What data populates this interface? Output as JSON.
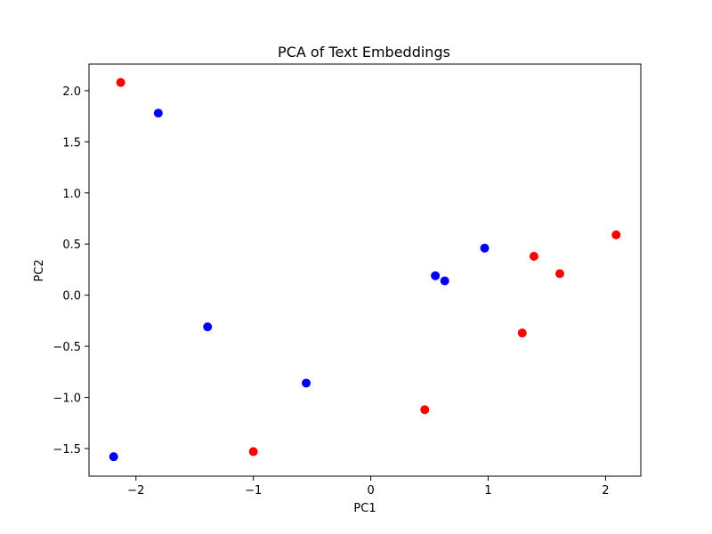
{
  "chart_data": {
    "type": "scatter",
    "title": "PCA of Text Embeddings",
    "xlabel": "PC1",
    "ylabel": "PC2",
    "xlim": [
      -2.4,
      2.3
    ],
    "ylim": [
      -1.77,
      2.26
    ],
    "xticks": [
      -2,
      -1,
      0,
      1,
      2
    ],
    "xtick_labels": [
      "−2",
      "−1",
      "0",
      "1",
      "2"
    ],
    "yticks": [
      -1.5,
      -1.0,
      -0.5,
      0.0,
      0.5,
      1.0,
      1.5,
      2.0
    ],
    "ytick_labels": [
      "−1.5",
      "−1.0",
      "−0.5",
      "0.0",
      "0.5",
      "1.0",
      "1.5",
      "2.0"
    ],
    "grid": false,
    "series": [
      {
        "name": "blue",
        "color": "#0000ff",
        "points": [
          [
            -1.81,
            1.78
          ],
          [
            -1.39,
            -0.31
          ],
          [
            -0.55,
            -0.86
          ],
          [
            -2.19,
            -1.58
          ],
          [
            0.55,
            0.19
          ],
          [
            0.63,
            0.14
          ],
          [
            0.97,
            0.46
          ]
        ]
      },
      {
        "name": "red",
        "color": "#ff0000",
        "points": [
          [
            -2.13,
            2.08
          ],
          [
            -1.0,
            -1.53
          ],
          [
            0.46,
            -1.12
          ],
          [
            1.29,
            -0.37
          ],
          [
            1.39,
            0.38
          ],
          [
            1.61,
            0.21
          ],
          [
            2.09,
            0.59
          ]
        ]
      }
    ]
  }
}
